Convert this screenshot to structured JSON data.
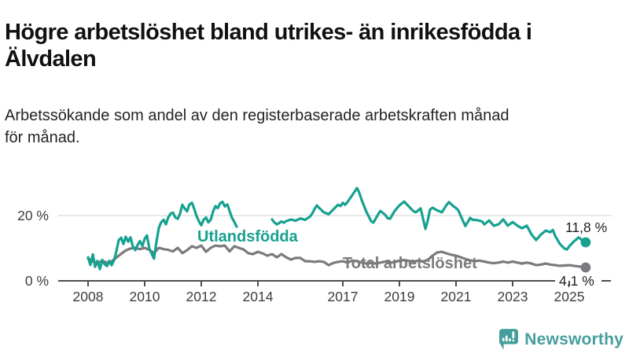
{
  "header": {
    "title_lines": [
      "Högre arbetslöshet bland utrikes- än inrikesfödda i",
      "Älvdalen"
    ],
    "subtitle_lines": [
      "Arbetssökande som andel av den registerbaserade arbetskraften månad",
      "för månad."
    ]
  },
  "branding": {
    "logo_text": "Newsworthy",
    "logo_color": "#459e9b",
    "logo_icon": "speech-bubble-bar-chart-icon"
  },
  "colors": {
    "accent_teal": "#16a190",
    "line_gray": "#7b7b7f",
    "axis": "#4e4e4e",
    "axis_text": "#3d3d3d",
    "gridline": "#d9d9d9",
    "value_label": "#1f1f1f",
    "title_text": "#111111"
  },
  "chart_data": {
    "type": "line",
    "title": "Högre arbetslöshet bland utrikes- än inrikesfödda i Älvdalen",
    "subtitle": "Arbetssökande som andel av den registerbaserade arbetskraften månad för månad.",
    "unit": "%",
    "grid": "y-only-at-20",
    "legend_position": "inline-labels-on-lines",
    "x_axis": {
      "min": 2008,
      "max": 2025.7,
      "tick_years": [
        2008,
        2010,
        2012,
        2014,
        2017,
        2019,
        2021,
        2023,
        2025
      ]
    },
    "y_axis": {
      "min": 0,
      "max": 29,
      "ticks": [
        {
          "value": 0,
          "label": "0 %",
          "gridline": false
        },
        {
          "value": 20,
          "label": "20 %",
          "gridline": true
        }
      ]
    },
    "series": [
      {
        "name": "Utlandsfödda",
        "color": "#16a190",
        "end_value": 11.8,
        "end_label": "11,8 %",
        "segments": [
          [
            [
              2008.0,
              7.2
            ],
            [
              2008.08,
              4.9
            ],
            [
              2008.17,
              8.1
            ],
            [
              2008.25,
              4.3
            ],
            [
              2008.33,
              6.1
            ],
            [
              2008.42,
              3.6
            ],
            [
              2008.5,
              6.4
            ],
            [
              2008.58,
              5.1
            ],
            [
              2008.67,
              4.5
            ],
            [
              2008.75,
              6.1
            ],
            [
              2008.83,
              4.8
            ],
            [
              2008.92,
              6.3
            ],
            [
              2009.0,
              9.0
            ],
            [
              2009.08,
              12.4
            ],
            [
              2009.17,
              13.2
            ],
            [
              2009.25,
              11.3
            ],
            [
              2009.33,
              13.5
            ],
            [
              2009.42,
              12.0
            ],
            [
              2009.5,
              13.3
            ],
            [
              2009.58,
              10.6
            ],
            [
              2009.67,
              9.4
            ],
            [
              2009.75,
              11.0
            ],
            [
              2009.83,
              12.2
            ],
            [
              2009.92,
              10.7
            ],
            [
              2010.0,
              12.9
            ],
            [
              2010.08,
              13.9
            ],
            [
              2010.17,
              9.7
            ],
            [
              2010.33,
              6.8
            ],
            [
              2010.42,
              12.1
            ],
            [
              2010.5,
              16.2
            ],
            [
              2010.58,
              17.9
            ],
            [
              2010.67,
              18.7
            ],
            [
              2010.75,
              17.3
            ],
            [
              2010.83,
              19.4
            ],
            [
              2010.92,
              20.6
            ],
            [
              2011.0,
              20.9
            ],
            [
              2011.08,
              19.4
            ],
            [
              2011.17,
              19.0
            ],
            [
              2011.25,
              20.6
            ],
            [
              2011.33,
              23.3
            ],
            [
              2011.42,
              22.1
            ],
            [
              2011.5,
              21.3
            ],
            [
              2011.58,
              23.4
            ],
            [
              2011.67,
              23.9
            ],
            [
              2011.75,
              22.1
            ],
            [
              2011.83,
              19.9
            ],
            [
              2011.92,
              18.2
            ],
            [
              2012.0,
              17.0
            ],
            [
              2012.08,
              18.7
            ],
            [
              2012.17,
              19.4
            ],
            [
              2012.25,
              17.9
            ],
            [
              2012.33,
              18.7
            ],
            [
              2012.42,
              21.3
            ],
            [
              2012.5,
              22.9
            ],
            [
              2012.58,
              22.3
            ],
            [
              2012.67,
              23.8
            ],
            [
              2012.75,
              24.2
            ],
            [
              2012.83,
              22.8
            ],
            [
              2012.92,
              23.4
            ],
            [
              2013.0,
              21.4
            ],
            [
              2013.08,
              19.4
            ],
            [
              2013.17,
              18.0
            ],
            [
              2013.25,
              16.6
            ]
          ],
          [
            [
              2014.5,
              18.8
            ],
            [
              2014.58,
              17.9
            ],
            [
              2014.67,
              17.3
            ],
            [
              2014.75,
              17.7
            ],
            [
              2014.83,
              18.2
            ],
            [
              2014.92,
              17.8
            ],
            [
              2015.0,
              18.3
            ],
            [
              2015.17,
              18.8
            ],
            [
              2015.33,
              18.4
            ],
            [
              2015.5,
              19.1
            ],
            [
              2015.67,
              18.7
            ],
            [
              2015.83,
              19.6
            ],
            [
              2015.92,
              20.6
            ],
            [
              2016.0,
              22.0
            ],
            [
              2016.08,
              23.1
            ],
            [
              2016.17,
              22.3
            ],
            [
              2016.33,
              21.0
            ],
            [
              2016.5,
              20.4
            ],
            [
              2016.67,
              21.9
            ],
            [
              2016.83,
              23.3
            ],
            [
              2016.92,
              22.9
            ],
            [
              2017.0,
              23.9
            ],
            [
              2017.08,
              23.3
            ],
            [
              2017.17,
              24.2
            ],
            [
              2017.33,
              26.2
            ],
            [
              2017.5,
              28.4
            ],
            [
              2017.58,
              27.0
            ],
            [
              2017.67,
              24.7
            ],
            [
              2017.83,
              21.2
            ],
            [
              2018.0,
              18.3
            ],
            [
              2018.08,
              17.8
            ],
            [
              2018.25,
              20.4
            ],
            [
              2018.33,
              21.4
            ],
            [
              2018.5,
              20.2
            ],
            [
              2018.58,
              19.2
            ],
            [
              2018.67,
              19.0
            ],
            [
              2018.83,
              21.4
            ],
            [
              2019.0,
              23.1
            ],
            [
              2019.17,
              24.3
            ],
            [
              2019.33,
              22.8
            ],
            [
              2019.5,
              21.3
            ],
            [
              2019.58,
              21.0
            ],
            [
              2019.75,
              22.2
            ],
            [
              2019.83,
              19.2
            ],
            [
              2019.92,
              15.9
            ],
            [
              2020.0,
              18.4
            ],
            [
              2020.08,
              21.8
            ],
            [
              2020.17,
              22.4
            ],
            [
              2020.33,
              21.6
            ],
            [
              2020.5,
              21.0
            ],
            [
              2020.67,
              23.3
            ],
            [
              2020.75,
              24.1
            ],
            [
              2020.92,
              22.8
            ],
            [
              2021.0,
              22.3
            ],
            [
              2021.08,
              21.6
            ],
            [
              2021.25,
              18.3
            ],
            [
              2021.33,
              16.8
            ],
            [
              2021.5,
              19.3
            ],
            [
              2021.58,
              18.7
            ],
            [
              2021.75,
              18.6
            ],
            [
              2021.92,
              18.2
            ],
            [
              2022.0,
              17.3
            ],
            [
              2022.17,
              18.5
            ],
            [
              2022.33,
              16.9
            ],
            [
              2022.5,
              17.3
            ],
            [
              2022.67,
              18.8
            ],
            [
              2022.83,
              16.9
            ],
            [
              2023.0,
              18.0
            ],
            [
              2023.17,
              16.9
            ],
            [
              2023.33,
              16.1
            ],
            [
              2023.5,
              16.9
            ],
            [
              2023.67,
              14.2
            ],
            [
              2023.83,
              12.5
            ],
            [
              2024.0,
              14.2
            ],
            [
              2024.17,
              15.4
            ],
            [
              2024.33,
              14.9
            ],
            [
              2024.42,
              15.6
            ],
            [
              2024.5,
              13.8
            ],
            [
              2024.67,
              11.3
            ],
            [
              2024.83,
              9.9
            ],
            [
              2024.92,
              9.6
            ],
            [
              2025.0,
              10.6
            ],
            [
              2025.17,
              12.1
            ],
            [
              2025.33,
              13.3
            ],
            [
              2025.42,
              12.7
            ],
            [
              2025.58,
              11.8
            ]
          ]
        ]
      },
      {
        "name": "Total arbetslöshet",
        "color": "#7b7b7f",
        "end_value": 4.1,
        "end_label": "4,1 %",
        "segments": [
          [
            [
              2008.0,
              6.9
            ],
            [
              2008.17,
              5.9
            ],
            [
              2008.33,
              5.5
            ],
            [
              2008.5,
              6.1
            ],
            [
              2008.67,
              5.6
            ],
            [
              2008.83,
              6.0
            ],
            [
              2009.0,
              7.1
            ],
            [
              2009.17,
              8.3
            ],
            [
              2009.33,
              9.3
            ],
            [
              2009.5,
              9.9
            ],
            [
              2009.67,
              10.1
            ],
            [
              2009.83,
              9.7
            ],
            [
              2010.0,
              10.1
            ],
            [
              2010.17,
              9.5
            ],
            [
              2010.33,
              8.5
            ],
            [
              2010.5,
              10.1
            ],
            [
              2010.67,
              9.7
            ],
            [
              2010.83,
              9.5
            ],
            [
              2011.0,
              9.0
            ],
            [
              2011.17,
              10.1
            ],
            [
              2011.33,
              8.5
            ],
            [
              2011.5,
              9.4
            ],
            [
              2011.67,
              10.6
            ],
            [
              2011.83,
              10.1
            ],
            [
              2012.0,
              10.8
            ],
            [
              2012.17,
              8.9
            ],
            [
              2012.33,
              10.1
            ],
            [
              2012.5,
              10.8
            ],
            [
              2012.67,
              10.6
            ],
            [
              2012.83,
              10.8
            ],
            [
              2013.0,
              9.0
            ],
            [
              2013.17,
              10.6
            ],
            [
              2013.33,
              10.1
            ],
            [
              2013.5,
              9.6
            ],
            [
              2013.67,
              8.4
            ],
            [
              2013.83,
              8.2
            ],
            [
              2014.0,
              8.9
            ],
            [
              2014.17,
              8.4
            ],
            [
              2014.33,
              7.7
            ],
            [
              2014.5,
              8.2
            ],
            [
              2014.67,
              7.2
            ],
            [
              2014.83,
              8.2
            ],
            [
              2015.0,
              7.2
            ],
            [
              2015.17,
              6.5
            ],
            [
              2015.33,
              7.0
            ],
            [
              2015.5,
              7.0
            ],
            [
              2015.67,
              6.0
            ],
            [
              2015.83,
              6.0
            ],
            [
              2016.0,
              5.8
            ],
            [
              2016.17,
              6.0
            ],
            [
              2016.33,
              5.8
            ],
            [
              2016.5,
              4.8
            ],
            [
              2016.67,
              5.5
            ],
            [
              2016.83,
              5.8
            ],
            [
              2017.0,
              6.0
            ],
            [
              2017.17,
              5.6
            ],
            [
              2017.33,
              6.2
            ],
            [
              2017.5,
              6.0
            ],
            [
              2017.67,
              5.6
            ],
            [
              2017.83,
              5.3
            ],
            [
              2018.0,
              5.6
            ],
            [
              2018.17,
              5.3
            ],
            [
              2018.33,
              5.6
            ],
            [
              2018.5,
              5.9
            ],
            [
              2018.67,
              5.5
            ],
            [
              2018.83,
              5.8
            ],
            [
              2019.0,
              6.1
            ],
            [
              2019.17,
              6.4
            ],
            [
              2019.33,
              6.1
            ],
            [
              2019.5,
              5.9
            ],
            [
              2019.67,
              6.2
            ],
            [
              2019.83,
              5.9
            ],
            [
              2020.0,
              6.4
            ],
            [
              2020.17,
              7.7
            ],
            [
              2020.33,
              8.7
            ],
            [
              2020.5,
              8.9
            ],
            [
              2020.67,
              8.4
            ],
            [
              2020.83,
              8.0
            ],
            [
              2021.0,
              7.7
            ],
            [
              2021.17,
              7.2
            ],
            [
              2021.33,
              6.7
            ],
            [
              2021.5,
              6.3
            ],
            [
              2021.67,
              6.0
            ],
            [
              2021.83,
              6.2
            ],
            [
              2022.0,
              5.9
            ],
            [
              2022.17,
              5.6
            ],
            [
              2022.33,
              5.4
            ],
            [
              2022.5,
              5.6
            ],
            [
              2022.67,
              5.9
            ],
            [
              2022.83,
              5.6
            ],
            [
              2023.0,
              5.9
            ],
            [
              2023.17,
              5.6
            ],
            [
              2023.33,
              5.3
            ],
            [
              2023.5,
              5.6
            ],
            [
              2023.67,
              5.3
            ],
            [
              2023.83,
              4.8
            ],
            [
              2024.0,
              5.0
            ],
            [
              2024.17,
              5.3
            ],
            [
              2024.33,
              5.0
            ],
            [
              2024.5,
              4.8
            ],
            [
              2024.67,
              4.6
            ],
            [
              2024.83,
              4.7
            ],
            [
              2025.0,
              4.8
            ],
            [
              2025.17,
              4.6
            ],
            [
              2025.33,
              4.4
            ],
            [
              2025.5,
              4.2
            ],
            [
              2025.58,
              4.1
            ]
          ]
        ]
      }
    ]
  }
}
